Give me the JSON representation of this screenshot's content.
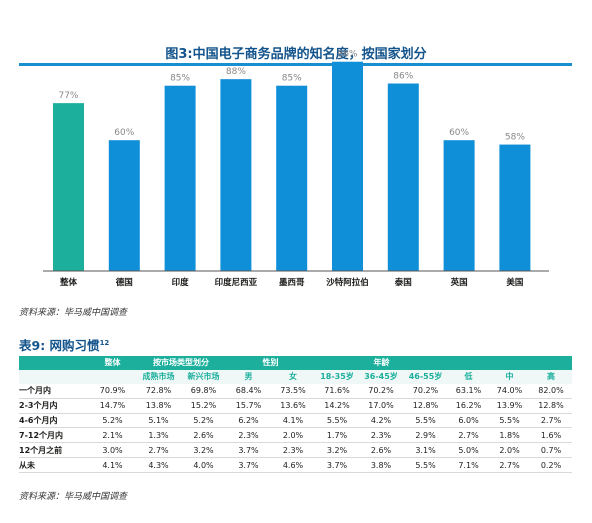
{
  "figure": {
    "title": "图3:中国电子商务品牌的知名度，按国家划分",
    "source": "资料来源：毕马威中国调查"
  },
  "chart_data": {
    "type": "bar",
    "categories": [
      "整体",
      "德国",
      "印度",
      "印度尼西亚",
      "墨西哥",
      "沙特阿拉伯",
      "泰国",
      "英国",
      "美国"
    ],
    "values": [
      77,
      60,
      85,
      88,
      85,
      96,
      86,
      60,
      58
    ],
    "value_labels": [
      "77%",
      "60%",
      "85%",
      "88%",
      "85%",
      "96%",
      "86%",
      "60%",
      "58%"
    ],
    "ylim": [
      0,
      100
    ],
    "colors": {
      "highlight": "#1baf9c",
      "bars": "#0f8fd8",
      "baseline": "#555555",
      "label": "#888888"
    },
    "grid": false
  },
  "table": {
    "title": "表9: 网购习惯",
    "title_sup": "12",
    "group_headers": [
      {
        "label": "",
        "span": 1
      },
      {
        "label": "整体",
        "span": 1
      },
      {
        "label": "按市场类型划分",
        "span": 2
      },
      {
        "label": "性别",
        "span": 2
      },
      {
        "label": "年龄",
        "span": 3
      },
      {
        "label": "",
        "span": 3
      }
    ],
    "sub_headers": [
      "",
      "",
      "成熟市场",
      "新兴市场",
      "男",
      "女",
      "18-35岁",
      "36-45岁",
      "46-55岁",
      "低",
      "中",
      "高"
    ],
    "rows": [
      {
        "label": "一个月内",
        "values": [
          "70.9%",
          "72.8%",
          "69.8%",
          "68.4%",
          "73.5%",
          "71.6%",
          "70.2%",
          "70.2%",
          "63.1%",
          "74.0%",
          "82.0%"
        ]
      },
      {
        "label": "2-3个月内",
        "values": [
          "14.7%",
          "13.8%",
          "15.2%",
          "15.7%",
          "13.6%",
          "14.2%",
          "17.0%",
          "12.8%",
          "16.2%",
          "13.9%",
          "12.8%"
        ]
      },
      {
        "label": "4-6个月内",
        "values": [
          "5.2%",
          "5.1%",
          "5.2%",
          "6.2%",
          "4.1%",
          "5.5%",
          "4.2%",
          "5.5%",
          "6.0%",
          "5.5%",
          "2.7%"
        ]
      },
      {
        "label": "7-12个月内",
        "values": [
          "2.1%",
          "1.3%",
          "2.6%",
          "2.3%",
          "2.0%",
          "1.7%",
          "2.3%",
          "2.9%",
          "2.7%",
          "1.8%",
          "1.6%"
        ]
      },
      {
        "label": "12个月之前",
        "values": [
          "3.0%",
          "2.7%",
          "3.2%",
          "3.7%",
          "2.3%",
          "3.2%",
          "2.6%",
          "3.1%",
          "5.0%",
          "2.0%",
          "0.7%"
        ]
      },
      {
        "label": "从未",
        "values": [
          "4.1%",
          "4.3%",
          "4.0%",
          "3.7%",
          "4.6%",
          "3.7%",
          "3.8%",
          "5.5%",
          "7.1%",
          "2.7%",
          "0.2%"
        ]
      }
    ],
    "source": "资料来源：毕马威中国调查"
  }
}
